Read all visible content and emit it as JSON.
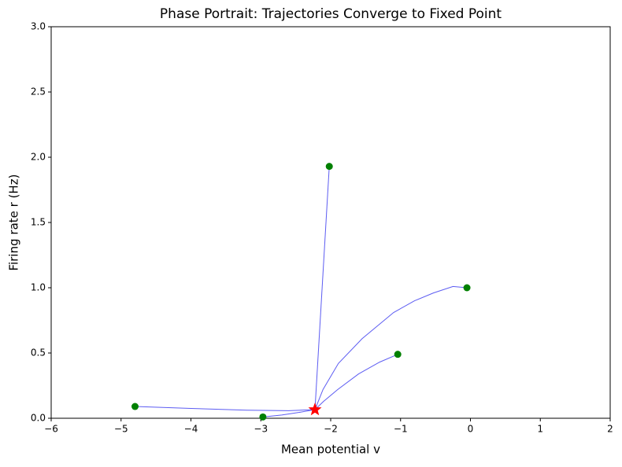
{
  "chart_data": {
    "type": "line",
    "title": "Phase Portrait: Trajectories Converge to Fixed Point",
    "xlabel": "Mean potential v",
    "ylabel": "Firing rate r (Hz)",
    "xlim": [
      -6,
      2
    ],
    "ylim": [
      0,
      3
    ],
    "xticks": [
      {
        "value": -6,
        "label": "−6"
      },
      {
        "value": -5,
        "label": "−5"
      },
      {
        "value": -4,
        "label": "−4"
      },
      {
        "value": -3,
        "label": "−3"
      },
      {
        "value": -2,
        "label": "−2"
      },
      {
        "value": -1,
        "label": "−1"
      },
      0,
      1,
      2
    ],
    "yticks": [
      {
        "value": 0,
        "label": "0.0"
      },
      0.5,
      {
        "value": 1,
        "label": "1.0"
      },
      1.5,
      {
        "value": 2,
        "label": "2.0"
      },
      2.5,
      {
        "value": 3,
        "label": "3.0"
      }
    ],
    "series": [
      {
        "color": "#4040f0",
        "x": [
          -4.8,
          -4.0,
          -3.2,
          -2.6,
          -2.225
        ],
        "values": [
          0.09,
          0.075,
          0.062,
          0.058,
          0.066
        ]
      },
      {
        "color": "#4040f0",
        "x": [
          -2.97,
          -2.7,
          -2.45,
          -2.225
        ],
        "values": [
          0.01,
          0.025,
          0.045,
          0.066
        ]
      },
      {
        "color": "#4040f0",
        "x": [
          -2.02,
          -2.225
        ],
        "values": [
          1.93,
          0.066
        ]
      },
      {
        "color": "#4040f0",
        "x": [
          -0.05,
          -0.25,
          -0.53,
          -0.8,
          -1.1,
          -1.55,
          -1.89,
          -2.11,
          -2.225
        ],
        "values": [
          1.0,
          1.01,
          0.96,
          0.9,
          0.81,
          0.61,
          0.42,
          0.22,
          0.066
        ]
      },
      {
        "color": "#4040f0",
        "x": [
          -1.04,
          -1.3,
          -1.6,
          -1.9,
          -2.1,
          -2.225
        ],
        "values": [
          0.49,
          0.43,
          0.34,
          0.22,
          0.13,
          0.066
        ]
      }
    ],
    "start_points": {
      "color": "green",
      "x": [
        -4.8,
        -2.97,
        -2.02,
        -0.05,
        -1.04
      ],
      "values": [
        0.09,
        0.01,
        1.93,
        1.0,
        0.49
      ]
    },
    "fixed_point": {
      "color": "red",
      "x": -2.225,
      "y": 0.066
    }
  }
}
